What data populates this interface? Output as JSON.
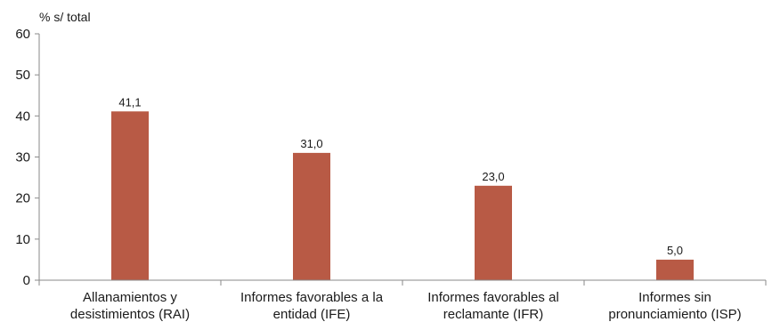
{
  "chart_data": {
    "type": "bar",
    "ylabel": "% s/ total",
    "ylim": [
      0,
      60
    ],
    "yticks": [
      0,
      10,
      20,
      30,
      40,
      50,
      60
    ],
    "grid": false,
    "categories": [
      [
        "Allanamientos y",
        "desistimientos (RAI)"
      ],
      [
        "Informes favorables a la",
        "entidad (IFE)"
      ],
      [
        "Informes favorables al",
        "reclamante (IFR)"
      ],
      [
        "Informes sin",
        "pronunciamiento (ISP)"
      ]
    ],
    "values": [
      41.1,
      31.0,
      23.0,
      5.0
    ],
    "data_labels": [
      "41,1",
      "31,0",
      "23,0",
      "5,0"
    ],
    "bar_color": "#b85a45"
  }
}
